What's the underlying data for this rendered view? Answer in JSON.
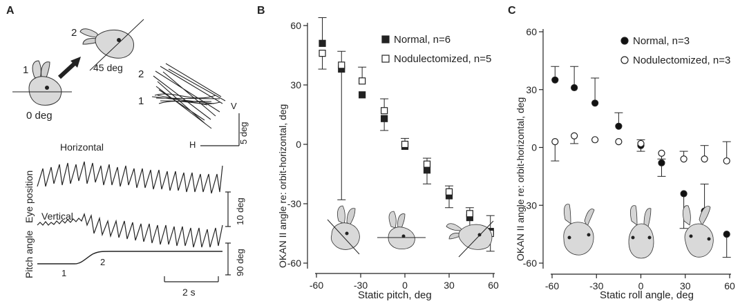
{
  "panel_a": {
    "label": "A",
    "step1": "1",
    "step2": "2",
    "angle0": "0 deg",
    "angle45": "45 deg",
    "traj_label_2": "2",
    "traj_label_1": "1",
    "traj_v": "V",
    "traj_h": "H",
    "traj_scale": "5 deg",
    "horizontal": "Horizontal",
    "vertical": "Vertical",
    "eye_position": "Eye position",
    "pitch_angle": "Pitch angle",
    "scale_eye": "10 deg",
    "scale_pitch": "90 deg",
    "pitch_1": "1",
    "pitch_2": "2",
    "scale_time": "2 s"
  },
  "chart_data": [
    {
      "panel": "B",
      "type": "scatter",
      "title": "",
      "xlabel": "Static pitch,   deg",
      "ylabel": "OKAN II angle re: orbit-horizontal,  deg",
      "xlim": [
        -60,
        60
      ],
      "ylim": [
        -60,
        60
      ],
      "x_ticks": [
        -60,
        -30,
        0,
        30,
        60
      ],
      "y_ticks": [
        -60,
        -30,
        0,
        30,
        60
      ],
      "grid": false,
      "legend_position": "top-right",
      "series": [
        {
          "name": "Normal, n=6",
          "marker": "filled-square",
          "x": [
            -56,
            -43,
            -29,
            -14,
            0,
            15,
            30,
            44,
            58
          ],
          "y": [
            51,
            38,
            25,
            13,
            -1,
            -13,
            -26,
            -37,
            -44
          ],
          "err_high": [
            64,
            0,
            0,
            0,
            0,
            0,
            0,
            0,
            0
          ],
          "err_low": [
            0,
            -28,
            0,
            7,
            0,
            -20,
            -32,
            -43,
            -54
          ]
        },
        {
          "name": "Nodulectomized, n=5",
          "marker": "open-square",
          "x": [
            -56,
            -43,
            -29,
            -14,
            0,
            15,
            30,
            44,
            58
          ],
          "y": [
            46,
            40,
            32,
            17,
            0,
            -10,
            -24,
            -35,
            -45
          ],
          "err_high": [
            0,
            47,
            39,
            23,
            3,
            -7,
            -21,
            -32,
            -36
          ],
          "err_low": [
            38,
            0,
            0,
            0,
            0,
            0,
            0,
            0,
            0
          ]
        }
      ]
    },
    {
      "panel": "C",
      "type": "scatter",
      "title": "",
      "xlabel": "Static roll angle,  deg",
      "ylabel": "OKAN II angle re: orbit-horizontal,  deg",
      "xlim": [
        -60,
        60
      ],
      "ylim": [
        -60,
        60
      ],
      "x_ticks": [
        -60,
        -30,
        0,
        30,
        60
      ],
      "y_ticks": [
        -60,
        -30,
        0,
        30,
        60
      ],
      "grid": false,
      "legend_position": "top-right",
      "series": [
        {
          "name": "Normal, n=3",
          "marker": "filled-circle",
          "x": [
            -58,
            -45,
            -31,
            -15,
            0,
            14,
            29,
            43,
            58
          ],
          "y": [
            35,
            31,
            23,
            11,
            1,
            -8,
            -24,
            -33,
            -45
          ],
          "err_high": [
            42,
            42,
            36,
            18,
            0,
            0,
            0,
            -19,
            0
          ],
          "err_low": [
            0,
            0,
            0,
            0,
            -2,
            -15,
            -42,
            0,
            -57
          ]
        },
        {
          "name": "Nodulectomized, n=3",
          "marker": "open-circle",
          "x": [
            -58,
            -45,
            -31,
            -15,
            0,
            14,
            29,
            43,
            58
          ],
          "y": [
            3,
            6,
            4,
            3,
            2,
            -3,
            -6,
            -6,
            -7
          ],
          "err_high": [
            0,
            0,
            0,
            0,
            4,
            0,
            -2,
            1,
            3
          ],
          "err_low": [
            -7,
            2,
            0,
            0,
            0,
            -6,
            0,
            0,
            0
          ]
        }
      ]
    }
  ]
}
